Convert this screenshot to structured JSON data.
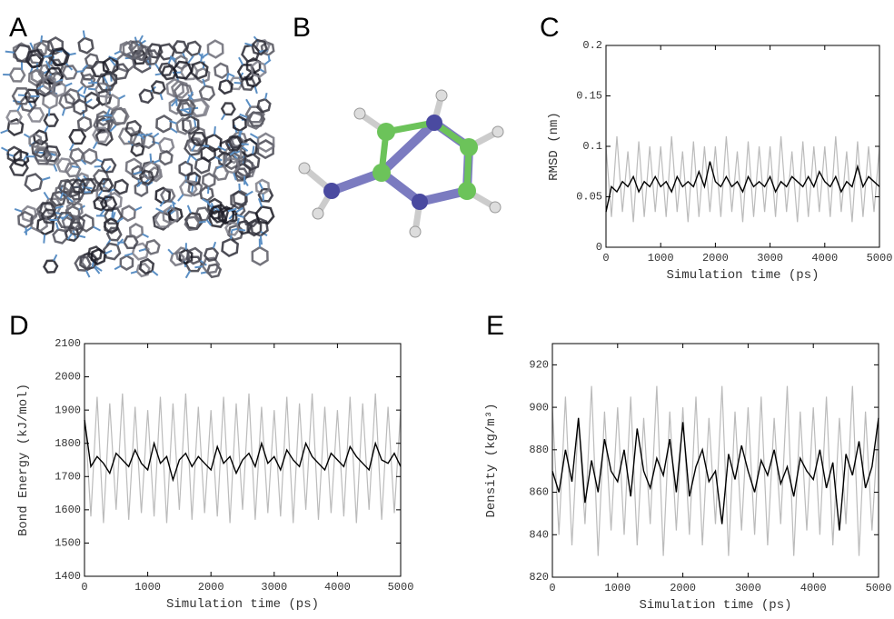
{
  "panel_labels": {
    "a": "A",
    "b": "B",
    "c": "C",
    "d": "D",
    "e": "E"
  },
  "chart_data": [
    {
      "type": "line",
      "xlabel": "Simulation time (ps)",
      "ylabel": "RMSD (nm)",
      "xlim": [
        0,
        5000
      ],
      "xticks": [
        0,
        1000,
        2000,
        3000,
        4000,
        5000
      ],
      "ylim": [
        0,
        0.2
      ],
      "yticks": [
        0,
        0.05,
        0.1,
        0.15,
        0.2
      ],
      "x": [
        0,
        100,
        200,
        300,
        400,
        500,
        600,
        700,
        800,
        900,
        1000,
        1100,
        1200,
        1300,
        1400,
        1500,
        1600,
        1700,
        1800,
        1900,
        2000,
        2100,
        2200,
        2300,
        2400,
        2500,
        2600,
        2700,
        2800,
        2900,
        3000,
        3100,
        3200,
        3300,
        3400,
        3500,
        3600,
        3700,
        3800,
        3900,
        4000,
        4100,
        4200,
        4300,
        4400,
        4500,
        4600,
        4700,
        4800,
        4900,
        5000
      ],
      "series": [
        {
          "color": "#bbbbbb",
          "values": [
            0.1,
            0.03,
            0.11,
            0.035,
            0.095,
            0.025,
            0.105,
            0.03,
            0.1,
            0.035,
            0.1,
            0.03,
            0.11,
            0.035,
            0.095,
            0.025,
            0.105,
            0.03,
            0.1,
            0.035,
            0.1,
            0.03,
            0.11,
            0.035,
            0.095,
            0.025,
            0.105,
            0.03,
            0.1,
            0.035,
            0.1,
            0.03,
            0.11,
            0.035,
            0.095,
            0.025,
            0.105,
            0.03,
            0.1,
            0.035,
            0.1,
            0.03,
            0.11,
            0.035,
            0.095,
            0.025,
            0.105,
            0.03,
            0.1,
            0.035,
            0.1
          ]
        },
        {
          "color": "#000000",
          "values": [
            0.035,
            0.06,
            0.055,
            0.065,
            0.06,
            0.07,
            0.055,
            0.065,
            0.06,
            0.07,
            0.06,
            0.065,
            0.055,
            0.07,
            0.06,
            0.065,
            0.06,
            0.075,
            0.06,
            0.085,
            0.065,
            0.06,
            0.07,
            0.06,
            0.065,
            0.055,
            0.07,
            0.06,
            0.065,
            0.06,
            0.07,
            0.055,
            0.065,
            0.06,
            0.07,
            0.065,
            0.06,
            0.07,
            0.06,
            0.075,
            0.065,
            0.06,
            0.07,
            0.055,
            0.065,
            0.06,
            0.08,
            0.06,
            0.07,
            0.065,
            0.06
          ]
        }
      ]
    },
    {
      "type": "line",
      "xlabel": "Simulation time (ps)",
      "ylabel": "Bond Energy (kJ/mol)",
      "xlim": [
        0,
        5000
      ],
      "xticks": [
        0,
        1000,
        2000,
        3000,
        4000,
        5000
      ],
      "ylim": [
        1400,
        2100
      ],
      "yticks": [
        1400,
        1500,
        1600,
        1700,
        1800,
        1900,
        2000,
        2100
      ],
      "x": [
        0,
        100,
        200,
        300,
        400,
        500,
        600,
        700,
        800,
        900,
        1000,
        1100,
        1200,
        1300,
        1400,
        1500,
        1600,
        1700,
        1800,
        1900,
        2000,
        2100,
        2200,
        2300,
        2400,
        2500,
        2600,
        2700,
        2800,
        2900,
        3000,
        3100,
        3200,
        3300,
        3400,
        3500,
        3600,
        3700,
        3800,
        3900,
        4000,
        4100,
        4200,
        4300,
        4400,
        4500,
        4600,
        4700,
        4800,
        4900,
        5000
      ],
      "series": [
        {
          "color": "#bbbbbb",
          "values": [
            1900,
            1580,
            1940,
            1560,
            1920,
            1600,
            1950,
            1570,
            1910,
            1590,
            1900,
            1580,
            1940,
            1560,
            1920,
            1600,
            1950,
            1570,
            1910,
            1590,
            1900,
            1580,
            1940,
            1560,
            1920,
            1600,
            1950,
            1570,
            1910,
            1590,
            1900,
            1580,
            1940,
            1560,
            1920,
            1600,
            1950,
            1570,
            1910,
            1590,
            1900,
            1580,
            1940,
            1560,
            1920,
            1600,
            1950,
            1570,
            1910,
            1590,
            1900
          ]
        },
        {
          "color": "#000000",
          "values": [
            1870,
            1730,
            1760,
            1740,
            1710,
            1770,
            1750,
            1730,
            1780,
            1740,
            1720,
            1800,
            1740,
            1760,
            1690,
            1750,
            1770,
            1730,
            1760,
            1740,
            1720,
            1790,
            1740,
            1760,
            1710,
            1750,
            1770,
            1730,
            1800,
            1740,
            1760,
            1720,
            1780,
            1750,
            1730,
            1800,
            1760,
            1740,
            1720,
            1770,
            1750,
            1730,
            1790,
            1760,
            1740,
            1720,
            1800,
            1750,
            1740,
            1770,
            1730
          ]
        }
      ]
    },
    {
      "type": "line",
      "xlabel": "Simulation time (ps)",
      "ylabel": "Density (kg/m³)",
      "xlim": [
        0,
        5000
      ],
      "xticks": [
        0,
        1000,
        2000,
        3000,
        4000,
        5000
      ],
      "ylim": [
        820,
        930
      ],
      "yticks": [
        820,
        840,
        860,
        880,
        900,
        920
      ],
      "x": [
        0,
        100,
        200,
        300,
        400,
        500,
        600,
        700,
        800,
        900,
        1000,
        1100,
        1200,
        1300,
        1400,
        1500,
        1600,
        1700,
        1800,
        1900,
        2000,
        2100,
        2200,
        2300,
        2400,
        2500,
        2600,
        2700,
        2800,
        2900,
        3000,
        3100,
        3200,
        3300,
        3400,
        3500,
        3600,
        3700,
        3800,
        3900,
        4000,
        4100,
        4200,
        4300,
        4400,
        4500,
        4600,
        4700,
        4800,
        4900,
        5000
      ],
      "series": [
        {
          "color": "#bbbbbb",
          "values": [
            900,
            840,
            905,
            835,
            895,
            845,
            910,
            830,
            898,
            842,
            900,
            840,
            905,
            835,
            895,
            845,
            910,
            830,
            898,
            842,
            900,
            840,
            905,
            835,
            895,
            845,
            910,
            830,
            898,
            842,
            900,
            840,
            905,
            835,
            895,
            845,
            910,
            830,
            898,
            842,
            900,
            840,
            905,
            835,
            895,
            845,
            910,
            830,
            898,
            842,
            895
          ]
        },
        {
          "color": "#000000",
          "values": [
            870,
            860,
            880,
            865,
            895,
            855,
            875,
            860,
            885,
            870,
            865,
            880,
            858,
            890,
            870,
            862,
            876,
            868,
            885,
            860,
            893,
            858,
            872,
            880,
            865,
            870,
            845,
            878,
            866,
            882,
            870,
            860,
            875,
            868,
            880,
            864,
            872,
            858,
            876,
            870,
            866,
            880,
            862,
            874,
            842,
            878,
            868,
            884,
            862,
            872,
            895
          ]
        }
      ]
    }
  ]
}
